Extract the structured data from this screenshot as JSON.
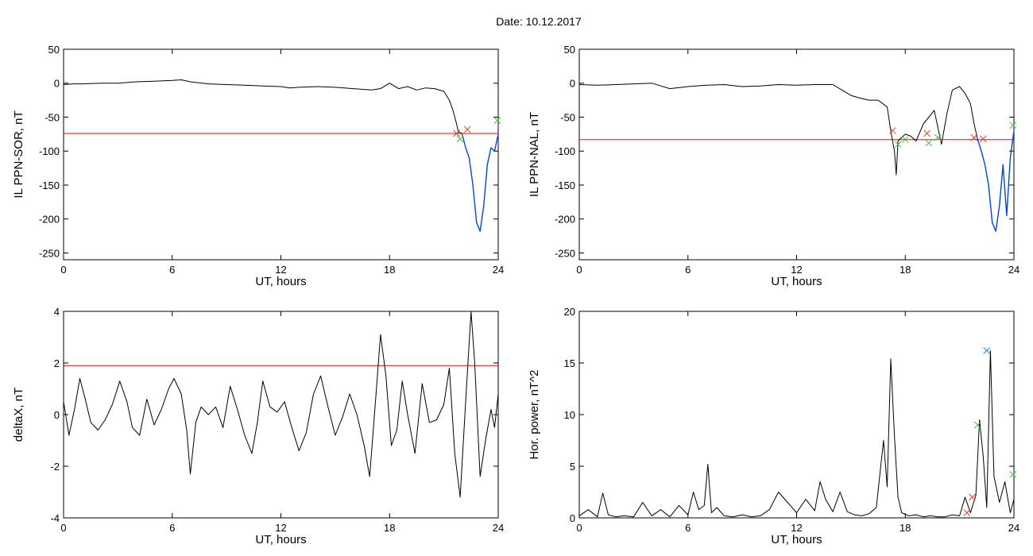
{
  "header": {
    "date_label": "Date:",
    "date_value": "10.12.2017"
  },
  "colors": {
    "trace": "#000000",
    "threshold": "#ff0000",
    "highlight": "#0047d6",
    "marker_red": "#e8402a",
    "marker_green": "#3ec33e",
    "marker_blue": "#2a7bd6"
  },
  "chart_data": [
    {
      "type": "line",
      "xlabel": "UT, hours",
      "ylabel": "IL PPN-SOR, nT",
      "xlim": [
        0,
        24
      ],
      "ylim": [
        -260,
        50
      ],
      "xticks": [
        0,
        6,
        12,
        18,
        24
      ],
      "yticks": [
        50,
        0,
        -50,
        -100,
        -150,
        -200,
        -250
      ],
      "threshold": -74,
      "series": [
        {
          "color": "#000000",
          "x": [
            0,
            0.5,
            1,
            2,
            3,
            4,
            5,
            6,
            6.5,
            7,
            8,
            9,
            10,
            11,
            12,
            12.5,
            13,
            14,
            15,
            16,
            17,
            17.5,
            18,
            18.5,
            19,
            19.5,
            20,
            20.5,
            21,
            21.3,
            21.5,
            21.7,
            21.8,
            22
          ],
          "values": [
            -2,
            -1,
            -1,
            0,
            0,
            2,
            3,
            4,
            5,
            2,
            -1,
            -2,
            -3,
            -4,
            -5,
            -7,
            -6,
            -5,
            -6,
            -8,
            -10,
            -8,
            0,
            -8,
            -5,
            -10,
            -7,
            -8,
            -12,
            -25,
            -40,
            -60,
            -72,
            -74
          ]
        },
        {
          "color": "#0047d6",
          "x": [
            22,
            22.2,
            22.4,
            22.6,
            22.8,
            23.0,
            23.2,
            23.4,
            23.6,
            23.8,
            24
          ],
          "values": [
            -74,
            -95,
            -110,
            -150,
            -205,
            -218,
            -180,
            -120,
            -95,
            -100,
            -75
          ]
        }
      ],
      "markers": [
        {
          "x": 21.7,
          "y": -74,
          "color": "#e8402a"
        },
        {
          "x": 22.3,
          "y": -68,
          "color": "#e8402a"
        },
        {
          "x": 21.9,
          "y": -82,
          "color": "#3ec33e"
        },
        {
          "x": 23.95,
          "y": -55,
          "color": "#3ec33e"
        }
      ]
    },
    {
      "type": "line",
      "xlabel": "UT, hours",
      "ylabel": "IL PPN-NAL, nT",
      "xlim": [
        0,
        24
      ],
      "ylim": [
        -260,
        50
      ],
      "xticks": [
        0,
        6,
        12,
        18,
        24
      ],
      "yticks": [
        50,
        0,
        -50,
        -100,
        -150,
        -200,
        -250
      ],
      "threshold": -83,
      "series": [
        {
          "color": "#000000",
          "x": [
            0,
            1,
            2,
            3,
            4,
            5,
            6,
            7,
            8,
            9,
            10,
            11,
            12,
            13,
            14,
            14.5,
            15,
            15.5,
            16,
            16.5,
            17,
            17.2,
            17.4,
            17.5,
            17.6,
            17.8,
            18,
            18.3,
            18.6,
            19,
            19.3,
            19.6,
            20,
            20.3,
            20.6,
            21,
            21.3,
            21.6,
            21.8,
            22
          ],
          "values": [
            -2,
            -3,
            -2,
            -1,
            0,
            -8,
            -5,
            -3,
            -2,
            -5,
            -4,
            -2,
            -3,
            -2,
            -2,
            -10,
            -18,
            -22,
            -25,
            -25,
            -35,
            -70,
            -100,
            -135,
            -85,
            -80,
            -75,
            -78,
            -85,
            -60,
            -50,
            -40,
            -90,
            -45,
            -10,
            -5,
            -15,
            -30,
            -60,
            -83
          ]
        },
        {
          "color": "#0047d6",
          "x": [
            22,
            22.2,
            22.4,
            22.6,
            22.8,
            23.0,
            23.2,
            23.4,
            23.6,
            23.8,
            24
          ],
          "values": [
            -83,
            -100,
            -120,
            -150,
            -205,
            -218,
            -180,
            -120,
            -195,
            -110,
            -70
          ]
        }
      ],
      "markers": [
        {
          "x": 17.3,
          "y": -70,
          "color": "#e8402a"
        },
        {
          "x": 19.2,
          "y": -74,
          "color": "#e8402a"
        },
        {
          "x": 21.8,
          "y": -80,
          "color": "#e8402a"
        },
        {
          "x": 22.3,
          "y": -82,
          "color": "#e8402a"
        },
        {
          "x": 17.6,
          "y": -90,
          "color": "#3ec33e"
        },
        {
          "x": 18.0,
          "y": -83,
          "color": "#3ec33e"
        },
        {
          "x": 19.3,
          "y": -88,
          "color": "#3ec33e"
        },
        {
          "x": 19.8,
          "y": -80,
          "color": "#3ec33e"
        },
        {
          "x": 23.95,
          "y": -62,
          "color": "#3ec33e"
        }
      ]
    },
    {
      "type": "line",
      "xlabel": "UT, hours",
      "ylabel": "deltaX, nT",
      "xlim": [
        0,
        24
      ],
      "ylim": [
        -4,
        4
      ],
      "xticks": [
        0,
        6,
        12,
        18,
        24
      ],
      "yticks": [
        4,
        2,
        0,
        -2,
        -4
      ],
      "threshold": 1.9,
      "series": [
        {
          "color": "#000000",
          "x": [
            0,
            0.3,
            0.6,
            0.9,
            1.2,
            1.5,
            1.9,
            2.3,
            2.7,
            3.1,
            3.5,
            3.8,
            4.2,
            4.6,
            5.0,
            5.4,
            5.8,
            6.1,
            6.5,
            6.8,
            7.0,
            7.3,
            7.6,
            8.0,
            8.4,
            8.8,
            9.2,
            9.6,
            10.0,
            10.4,
            10.7,
            11.0,
            11.4,
            11.8,
            12.2,
            12.6,
            13.0,
            13.4,
            13.8,
            14.2,
            14.6,
            15.0,
            15.4,
            15.8,
            16.2,
            16.6,
            16.9,
            17.2,
            17.5,
            17.8,
            18.1,
            18.4,
            18.7,
            19.0,
            19.4,
            19.8,
            20.2,
            20.6,
            21.0,
            21.3,
            21.6,
            21.9,
            22.2,
            22.5,
            22.7,
            23.0,
            23.3,
            23.6,
            23.8,
            24
          ],
          "values": [
            0.5,
            -0.8,
            0.2,
            1.4,
            0.6,
            -0.3,
            -0.6,
            -0.2,
            0.4,
            1.3,
            0.5,
            -0.5,
            -0.8,
            0.6,
            -0.4,
            0.2,
            1.0,
            1.4,
            0.8,
            -0.6,
            -2.3,
            -0.3,
            0.3,
            0.0,
            0.3,
            -0.5,
            1.1,
            0.2,
            -0.8,
            -1.5,
            -0.3,
            1.3,
            0.3,
            0.1,
            0.5,
            -0.5,
            -1.4,
            -0.7,
            0.8,
            1.5,
            0.3,
            -0.8,
            -0.1,
            0.8,
            0.0,
            -1.2,
            -2.4,
            0.3,
            3.1,
            1.5,
            -1.2,
            -0.6,
            1.3,
            0.0,
            -1.5,
            1.2,
            -0.3,
            -0.2,
            0.4,
            1.8,
            -1.5,
            -3.2,
            0.5,
            4.0,
            2.0,
            -2.4,
            -1.0,
            0.2,
            -0.5,
            0.8
          ]
        }
      ],
      "markers": []
    },
    {
      "type": "line",
      "xlabel": "UT, hours",
      "ylabel": "Hor. power, nT^2",
      "xlim": [
        0,
        24
      ],
      "ylim": [
        0,
        20
      ],
      "xticks": [
        0,
        6,
        12,
        18,
        24
      ],
      "yticks": [
        20,
        15,
        10,
        5,
        0
      ],
      "threshold": null,
      "series": [
        {
          "color": "#000000",
          "x": [
            0,
            0.5,
            1.0,
            1.3,
            1.6,
            2.0,
            2.5,
            3.0,
            3.5,
            4.0,
            4.5,
            5.0,
            5.5,
            6.0,
            6.3,
            6.6,
            6.9,
            7.1,
            7.3,
            7.6,
            8.0,
            8.5,
            9.0,
            9.5,
            10.0,
            10.5,
            11.0,
            11.5,
            12.0,
            12.5,
            13.0,
            13.3,
            13.6,
            14.0,
            14.4,
            14.8,
            15.2,
            15.6,
            16.0,
            16.4,
            16.8,
            17.0,
            17.2,
            17.4,
            17.6,
            17.8,
            18.2,
            18.6,
            19.0,
            19.4,
            19.8,
            20.2,
            20.6,
            21.0,
            21.3,
            21.6,
            21.9,
            22.1,
            22.3,
            22.5,
            22.7,
            22.9,
            23.2,
            23.5,
            23.8,
            24
          ],
          "values": [
            0.2,
            0.8,
            0.1,
            2.4,
            0.3,
            0.1,
            0.2,
            0.1,
            1.5,
            0.2,
            0.8,
            0.1,
            1.2,
            0.3,
            2.5,
            0.8,
            1.2,
            5.2,
            0.5,
            1.0,
            0.2,
            0.1,
            0.3,
            0.1,
            0.2,
            0.8,
            2.5,
            1.5,
            0.5,
            1.8,
            0.7,
            3.5,
            1.8,
            0.6,
            2.5,
            0.6,
            0.3,
            0.2,
            0.4,
            1.0,
            7.5,
            3.0,
            15.4,
            8.0,
            2.0,
            0.5,
            0.2,
            0.3,
            0.1,
            0.2,
            0.1,
            0.1,
            0.3,
            0.2,
            2.0,
            0.5,
            2.2,
            9.5,
            6.0,
            1.0,
            16.2,
            4.0,
            1.5,
            3.5,
            0.5,
            1.8
          ]
        }
      ],
      "markers": [
        {
          "x": 21.4,
          "y": 0.5,
          "color": "#e8402a"
        },
        {
          "x": 21.7,
          "y": 2.0,
          "color": "#e8402a"
        },
        {
          "x": 22.0,
          "y": 9.0,
          "color": "#3ec33e"
        },
        {
          "x": 23.95,
          "y": 4.2,
          "color": "#3ec33e"
        },
        {
          "x": 22.5,
          "y": 16.2,
          "color": "#2a7bd6"
        }
      ]
    }
  ]
}
